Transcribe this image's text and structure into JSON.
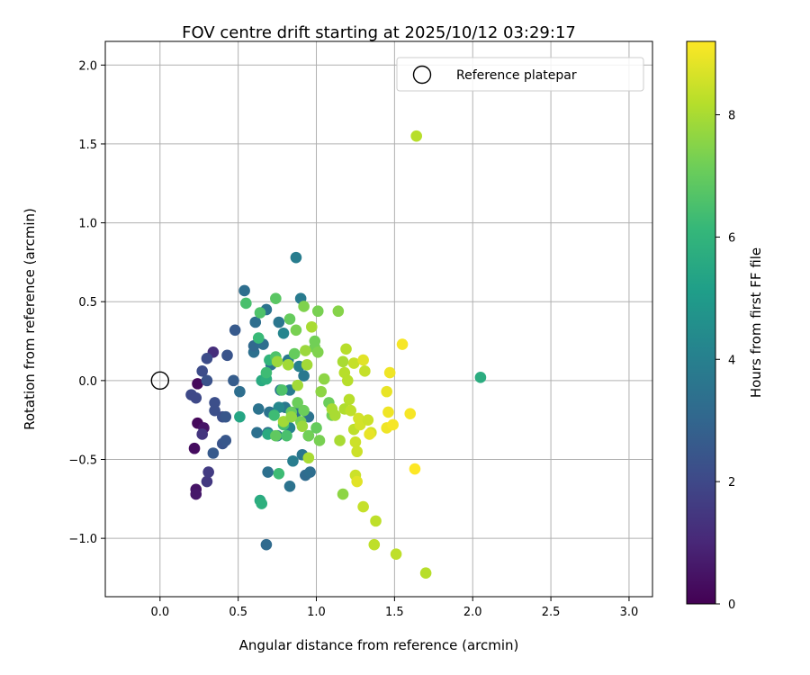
{
  "chart_data": {
    "type": "scatter",
    "title": "FOV centre drift starting at 2025/10/12 03:29:17",
    "xlabel": "Angular distance from reference (arcmin)",
    "ylabel": "Rotation from reference (arcmin)",
    "xlim": [
      -0.35,
      3.15
    ],
    "ylim": [
      -1.37,
      2.15
    ],
    "xticks": [
      0.0,
      0.5,
      1.0,
      1.5,
      2.0,
      2.5,
      3.0
    ],
    "xtick_labels": [
      "0.0",
      "0.5",
      "1.0",
      "1.5",
      "2.0",
      "2.5",
      "3.0"
    ],
    "yticks": [
      -1.0,
      -0.5,
      0.0,
      0.5,
      1.0,
      1.5,
      2.0
    ],
    "ytick_labels": [
      "−1.0",
      "−0.5",
      "0.0",
      "0.5",
      "1.0",
      "1.5",
      "2.0"
    ],
    "grid": true,
    "legend": {
      "position": "top-right",
      "entries": [
        "Reference platepar"
      ]
    },
    "reference_point": {
      "x": 0.0,
      "y": 0.0,
      "marker": "open-circle"
    },
    "colorbar": {
      "label": "Hours from first FF file",
      "range": [
        0,
        9.2
      ],
      "ticks": [
        0,
        2,
        4,
        6,
        8
      ],
      "tick_labels": [
        "0",
        "2",
        "4",
        "6",
        "8"
      ],
      "colormap": "viridis",
      "colors": [
        "#440154",
        "#482878",
        "#3e4a89",
        "#31688e",
        "#26828e",
        "#1f9e89",
        "#35b779",
        "#6ece58",
        "#b5de2b",
        "#fde725"
      ]
    },
    "points": [
      [
        0.24,
        -0.02,
        0.2
      ],
      [
        0.24,
        -0.27,
        0.2
      ],
      [
        0.22,
        -0.43,
        0.3
      ],
      [
        0.23,
        -0.69,
        0.5
      ],
      [
        0.23,
        -0.72,
        0.6
      ],
      [
        0.28,
        -0.3,
        0.5
      ],
      [
        0.27,
        -0.34,
        1.4
      ],
      [
        0.3,
        -0.64,
        1.5
      ],
      [
        0.31,
        -0.58,
        1.6
      ],
      [
        0.34,
        0.18,
        1.2
      ],
      [
        0.2,
        -0.09,
        2.0
      ],
      [
        0.23,
        -0.11,
        2.0
      ],
      [
        0.27,
        0.06,
        2.1
      ],
      [
        0.3,
        0.14,
        2.1
      ],
      [
        0.3,
        0.0,
        2.3
      ],
      [
        0.35,
        -0.14,
        2.2
      ],
      [
        0.35,
        -0.19,
        2.2
      ],
      [
        0.4,
        -0.23,
        2.2
      ],
      [
        0.42,
        -0.23,
        2.5
      ],
      [
        0.43,
        0.16,
        2.4
      ],
      [
        0.4,
        -0.4,
        2.4
      ],
      [
        0.42,
        -0.38,
        2.5
      ],
      [
        0.34,
        -0.46,
        2.6
      ],
      [
        0.47,
        0.0,
        2.7
      ],
      [
        0.48,
        0.32,
        2.6
      ],
      [
        0.51,
        -0.07,
        3.3
      ],
      [
        0.54,
        0.57,
        3.3
      ],
      [
        0.6,
        0.18,
        3.4
      ],
      [
        0.61,
        0.37,
        3.3
      ],
      [
        0.6,
        0.22,
        3.1
      ],
      [
        0.62,
        -0.33,
        3.4
      ],
      [
        0.63,
        -0.18,
        3.5
      ],
      [
        0.68,
        0.45,
        3.5
      ],
      [
        0.66,
        0.23,
        3.3
      ],
      [
        0.68,
        -1.04,
        3.2
      ],
      [
        0.69,
        -0.58,
        3.4
      ],
      [
        0.69,
        -0.33,
        3.4
      ],
      [
        0.7,
        -0.2,
        3.5
      ],
      [
        0.71,
        0.1,
        3.5
      ],
      [
        0.75,
        -0.35,
        3.7
      ],
      [
        0.76,
        0.37,
        3.6
      ],
      [
        0.77,
        -0.06,
        3.7
      ],
      [
        0.8,
        -0.17,
        3.7
      ],
      [
        0.82,
        0.13,
        3.8
      ],
      [
        0.83,
        -0.06,
        3.9
      ],
      [
        0.85,
        -0.51,
        3.9
      ],
      [
        0.83,
        -0.67,
        3.5
      ],
      [
        0.87,
        0.78,
        3.9
      ],
      [
        0.89,
        0.09,
        4.0
      ],
      [
        0.9,
        0.52,
        3.8
      ],
      [
        0.91,
        -0.47,
        3.6
      ],
      [
        0.92,
        0.03,
        3.7
      ],
      [
        0.93,
        -0.6,
        3.2
      ],
      [
        0.95,
        -0.23,
        3.5
      ],
      [
        0.96,
        -0.58,
        3.3
      ],
      [
        0.95,
        -0.35,
        3.0
      ],
      [
        0.87,
        -0.2,
        3.4
      ],
      [
        0.79,
        0.3,
        4.2
      ],
      [
        0.83,
        -0.3,
        4.1
      ],
      [
        0.76,
        -0.17,
        4.3
      ],
      [
        0.51,
        -0.23,
        5.4
      ],
      [
        0.55,
        0.49,
        6.5
      ],
      [
        0.64,
        -0.76,
        5.6
      ],
      [
        0.65,
        -0.78,
        5.8
      ],
      [
        0.63,
        0.27,
        6.2
      ],
      [
        0.64,
        0.43,
        6.6
      ],
      [
        0.65,
        0.0,
        5.6
      ],
      [
        0.68,
        0.01,
        5.8
      ],
      [
        0.68,
        0.05,
        6.3
      ],
      [
        0.69,
        -0.34,
        5.6
      ],
      [
        0.7,
        0.13,
        6.0
      ],
      [
        0.73,
        -0.22,
        6.3
      ],
      [
        0.74,
        0.52,
        6.8
      ],
      [
        0.74,
        -0.35,
        6.9
      ],
      [
        0.74,
        0.15,
        6.6
      ],
      [
        0.76,
        -0.59,
        6.3
      ],
      [
        0.78,
        -0.06,
        6.6
      ],
      [
        0.79,
        -0.28,
        6.4
      ],
      [
        0.81,
        -0.35,
        6.5
      ],
      [
        0.83,
        0.39,
        7.0
      ],
      [
        0.84,
        -0.2,
        7.0
      ],
      [
        0.86,
        0.17,
        7.0
      ],
      [
        0.87,
        0.32,
        7.3
      ],
      [
        0.88,
        -0.14,
        7.1
      ],
      [
        0.9,
        -0.26,
        7.3
      ],
      [
        0.92,
        -0.19,
        7.1
      ],
      [
        0.92,
        0.47,
        7.4
      ],
      [
        0.95,
        -0.35,
        7.2
      ],
      [
        0.99,
        0.21,
        7.2
      ],
      [
        0.99,
        0.25,
        7.2
      ],
      [
        1.0,
        -0.3,
        7.0
      ],
      [
        1.01,
        0.44,
        7.3
      ],
      [
        1.01,
        0.18,
        7.4
      ],
      [
        1.02,
        -0.38,
        7.3
      ],
      [
        1.03,
        -0.07,
        7.6
      ],
      [
        1.05,
        0.01,
        7.6
      ],
      [
        1.08,
        -0.14,
        7.1
      ],
      [
        1.1,
        -0.22,
        7.2
      ],
      [
        1.14,
        0.44,
        7.5
      ],
      [
        1.17,
        -0.72,
        7.6
      ],
      [
        0.75,
        0.12,
        7.8
      ],
      [
        0.79,
        -0.26,
        7.9
      ],
      [
        0.82,
        0.1,
        7.9
      ],
      [
        0.84,
        -0.23,
        7.7
      ],
      [
        0.88,
        -0.03,
        7.9
      ],
      [
        0.91,
        -0.29,
        7.8
      ],
      [
        0.93,
        0.19,
        7.8
      ],
      [
        0.94,
        0.1,
        7.9
      ],
      [
        0.95,
        -0.49,
        8.0
      ],
      [
        0.97,
        0.34,
        8.0
      ],
      [
        1.1,
        -0.18,
        8.0
      ],
      [
        1.12,
        -0.22,
        8.0
      ],
      [
        1.15,
        -0.38,
        8.0
      ],
      [
        1.17,
        0.12,
        8.0
      ],
      [
        1.18,
        -0.18,
        8.1
      ],
      [
        1.18,
        0.05,
        8.2
      ],
      [
        1.19,
        0.2,
        8.2
      ],
      [
        1.2,
        0.0,
        8.2
      ],
      [
        1.21,
        -0.12,
        8.2
      ],
      [
        1.22,
        -0.19,
        8.3
      ],
      [
        1.24,
        -0.31,
        8.3
      ],
      [
        1.24,
        0.11,
        8.4
      ],
      [
        1.25,
        -0.6,
        8.5
      ],
      [
        1.25,
        -0.39,
        8.5
      ],
      [
        1.26,
        -0.45,
        8.5
      ],
      [
        1.27,
        -0.24,
        8.6
      ],
      [
        1.28,
        -0.28,
        8.6
      ],
      [
        1.3,
        -0.8,
        8.4
      ],
      [
        1.31,
        0.06,
        8.4
      ],
      [
        1.33,
        -0.25,
        8.5
      ],
      [
        1.35,
        -0.33,
        8.6
      ],
      [
        1.37,
        -1.04,
        8.3
      ],
      [
        1.38,
        -0.89,
        8.3
      ],
      [
        1.51,
        -1.1,
        8.3
      ],
      [
        1.64,
        1.55,
        8.2
      ],
      [
        1.7,
        -1.22,
        8.2
      ],
      [
        1.26,
        -0.64,
        8.8
      ],
      [
        1.3,
        0.13,
        8.8
      ],
      [
        1.34,
        -0.34,
        8.9
      ],
      [
        1.45,
        -0.07,
        8.9
      ],
      [
        1.45,
        -0.3,
        9.0
      ],
      [
        1.46,
        -0.2,
        9.0
      ],
      [
        1.47,
        0.05,
        9.0
      ],
      [
        1.49,
        -0.28,
        9.1
      ],
      [
        1.55,
        0.23,
        9.1
      ],
      [
        1.6,
        -0.21,
        9.1
      ],
      [
        1.63,
        -0.56,
        9.2
      ],
      [
        2.05,
        0.02,
        5.7
      ]
    ]
  }
}
